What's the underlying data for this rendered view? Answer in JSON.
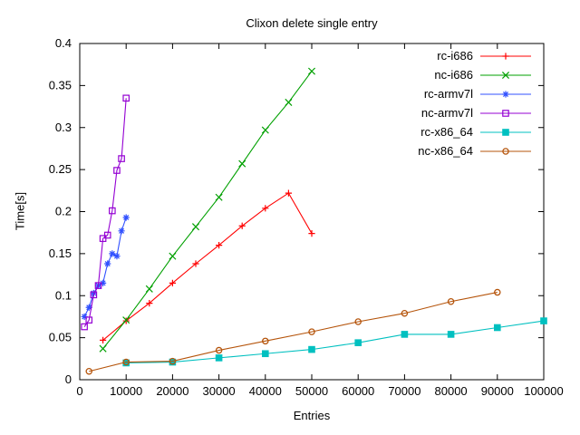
{
  "chart_data": {
    "type": "line",
    "title": "Clixon delete single entry",
    "xlabel": "Entries",
    "ylabel": "Time[s]",
    "xlim": [
      0,
      100000
    ],
    "ylim": [
      0,
      0.4
    ],
    "xticks": [
      0,
      10000,
      20000,
      30000,
      40000,
      50000,
      60000,
      70000,
      80000,
      90000,
      100000
    ],
    "yticks": [
      0,
      0.05,
      0.1,
      0.15,
      0.2,
      0.25,
      0.3,
      0.35,
      0.4
    ],
    "grid": false,
    "legend_position": "top-right",
    "axis_color": "#000000",
    "series": [
      {
        "name": "rc-i686",
        "color": "#ff0000",
        "marker": "plus",
        "x": [
          5000,
          10000,
          15000,
          20000,
          25000,
          30000,
          35000,
          40000,
          45000,
          50000
        ],
        "y": [
          0.047,
          0.07,
          0.091,
          0.115,
          0.138,
          0.16,
          0.183,
          0.204,
          0.222,
          0.174
        ]
      },
      {
        "name": "nc-i686",
        "color": "#00a000",
        "marker": "cross",
        "x": [
          5000,
          10000,
          15000,
          20000,
          25000,
          30000,
          35000,
          40000,
          45000,
          50000
        ],
        "y": [
          0.037,
          0.071,
          0.108,
          0.147,
          0.182,
          0.217,
          0.257,
          0.297,
          0.33,
          0.367
        ]
      },
      {
        "name": "rc-armv7l",
        "color": "#3050ff",
        "marker": "asterisk",
        "x": [
          1000,
          2000,
          3000,
          4000,
          5000,
          6000,
          7000,
          8000,
          9000,
          10000
        ],
        "y": [
          0.075,
          0.086,
          0.103,
          0.112,
          0.115,
          0.138,
          0.15,
          0.147,
          0.177,
          0.193
        ]
      },
      {
        "name": "nc-armv7l",
        "color": "#9400d3",
        "marker": "square-open",
        "x": [
          1000,
          2000,
          3000,
          4000,
          5000,
          6000,
          7000,
          8000,
          9000,
          10000
        ],
        "y": [
          0.063,
          0.071,
          0.101,
          0.112,
          0.168,
          0.172,
          0.201,
          0.249,
          0.263,
          0.335
        ]
      },
      {
        "name": "rc-x86_64",
        "color": "#00c0c0",
        "marker": "square-filled",
        "x": [
          10000,
          20000,
          30000,
          40000,
          50000,
          60000,
          70000,
          80000,
          90000,
          100000
        ],
        "y": [
          0.02,
          0.021,
          0.026,
          0.031,
          0.036,
          0.044,
          0.054,
          0.054,
          0.062,
          0.07
        ]
      },
      {
        "name": "nc-x86_64",
        "color": "#b5540b",
        "marker": "circle-open",
        "x": [
          2000,
          10000,
          20000,
          30000,
          40000,
          50000,
          60000,
          70000,
          80000,
          90000
        ],
        "y": [
          0.01,
          0.021,
          0.022,
          0.035,
          0.046,
          0.057,
          0.069,
          0.079,
          0.093,
          0.104
        ]
      }
    ]
  }
}
